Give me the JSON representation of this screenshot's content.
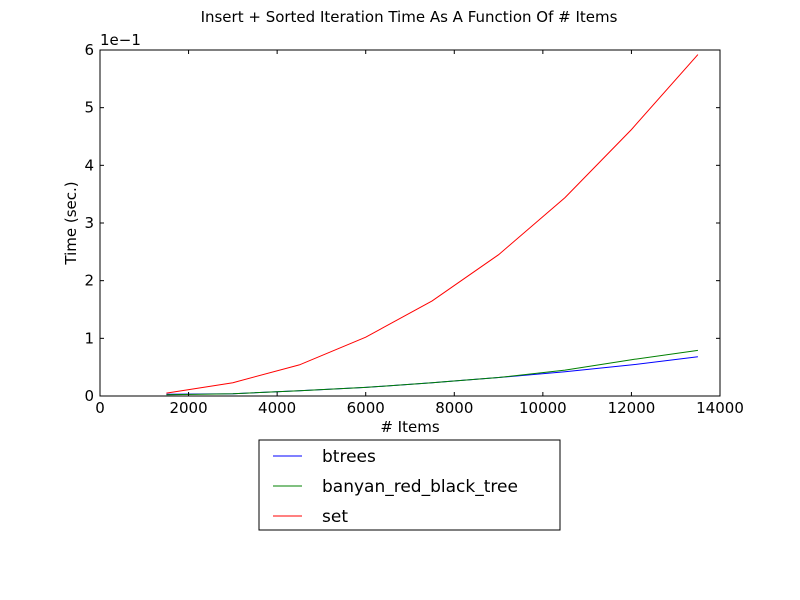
{
  "chart_data": {
    "type": "line",
    "title": "Insert + Sorted Iteration Time As A Function Of # Items",
    "xlabel": "# Items",
    "ylabel": "Time (sec.)",
    "y_offset_text": "1e−1",
    "xlim": [
      0,
      14000
    ],
    "ylim": [
      0,
      0.6
    ],
    "x_ticks": [
      0,
      2000,
      4000,
      6000,
      8000,
      10000,
      12000,
      14000
    ],
    "y_ticks": [
      0,
      0.1,
      0.2,
      0.3,
      0.4,
      0.5,
      0.6
    ],
    "y_tick_labels": [
      "0",
      "1",
      "2",
      "3",
      "4",
      "5",
      "6"
    ],
    "grid": false,
    "legend_position": "below",
    "x": [
      1500,
      3000,
      4500,
      6000,
      7500,
      9000,
      10500,
      12000,
      13500
    ],
    "series": [
      {
        "name": "btrees",
        "color": "#0000ff",
        "values": [
          0.003,
          0.004,
          0.009,
          0.015,
          0.023,
          0.032,
          0.042,
          0.054,
          0.068
        ]
      },
      {
        "name": "banyan_red_black_tree",
        "color": "#008000",
        "values": [
          0.002,
          0.004,
          0.009,
          0.015,
          0.023,
          0.032,
          0.045,
          0.063,
          0.079
        ]
      },
      {
        "name": "set",
        "color": "#ff0000",
        "values": [
          0.005,
          0.023,
          0.054,
          0.102,
          0.165,
          0.245,
          0.344,
          0.462,
          0.592
        ]
      }
    ]
  }
}
